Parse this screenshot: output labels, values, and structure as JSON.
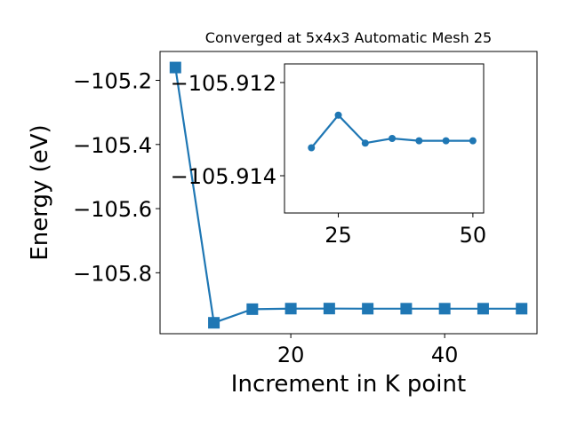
{
  "chart_data": [
    {
      "type": "line",
      "title": "Converged at 5x4x3 Automatic Mesh 25",
      "xlabel": "Increment in K point",
      "ylabel": "Energy (eV)",
      "x_ticks": [
        "20",
        "40"
      ],
      "y_ticks": [
        "−105.2",
        "−105.4",
        "−105.6",
        "−105.8"
      ],
      "xlim": [
        3,
        52
      ],
      "ylim": [
        -105.99,
        -105.11
      ],
      "grid": false,
      "marker": "square",
      "color": "#1f77b4",
      "x": [
        5,
        10,
        15,
        20,
        25,
        30,
        35,
        40,
        45,
        50
      ],
      "y": [
        -105.16,
        -105.956,
        -105.9135,
        -105.9118,
        -105.9116,
        -105.912,
        -105.912,
        -105.912,
        -105.912,
        -105.912
      ]
    },
    {
      "type": "line",
      "title": "",
      "xlabel": "",
      "ylabel": "",
      "x_ticks": [
        "25",
        "50"
      ],
      "y_ticks": [
        "−105.914",
        "−105.912"
      ],
      "xlim": [
        15,
        52
      ],
      "ylim": [
        -105.9148,
        -105.9116
      ],
      "grid": false,
      "marker": "circle",
      "color": "#1f77b4",
      "x": [
        20,
        25,
        30,
        35,
        40,
        45,
        50
      ],
      "y": [
        -105.9134,
        -105.9127,
        -105.9133,
        -105.9132,
        -105.91325,
        -105.91325,
        -105.91325
      ]
    }
  ]
}
